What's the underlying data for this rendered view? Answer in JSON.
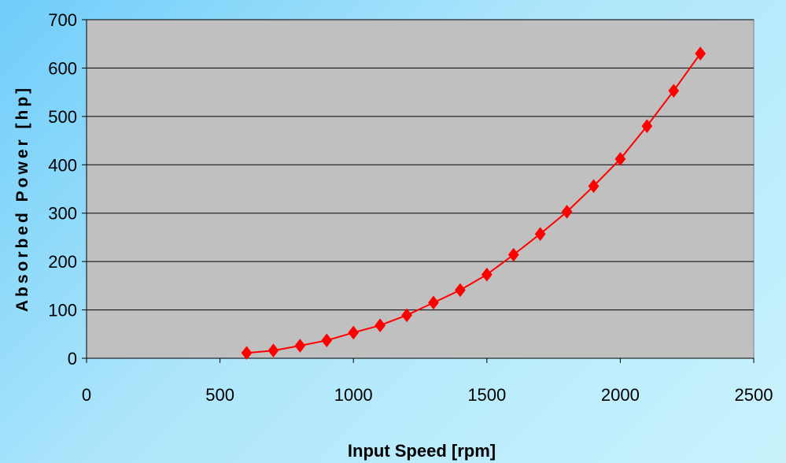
{
  "chart_data": {
    "type": "line",
    "title": "",
    "xlabel": "Input Speed [rpm]",
    "ylabel": "Absorbed Power [hp]",
    "xlim": [
      0,
      2500
    ],
    "ylim": [
      0,
      700
    ],
    "xticks": [
      "0",
      "500",
      "1000",
      "1500",
      "2000",
      "2500"
    ],
    "yticks": [
      "0",
      "100",
      "200",
      "300",
      "400",
      "500",
      "600",
      "700"
    ],
    "grid": "horizontal",
    "legend": "none",
    "series": [
      {
        "marker": "diamond",
        "color": "#ff0000",
        "x": [
          600,
          700,
          800,
          900,
          1000,
          1100,
          1200,
          1300,
          1400,
          1500,
          1600,
          1700,
          1800,
          1900,
          2000,
          2100,
          2200,
          2300
        ],
        "y": [
          11,
          16,
          26,
          37,
          53,
          68,
          89,
          115,
          141,
          173,
          214,
          257,
          303,
          356,
          412,
          480,
          553,
          630
        ]
      }
    ],
    "plot_background": "#c0c0c0"
  }
}
